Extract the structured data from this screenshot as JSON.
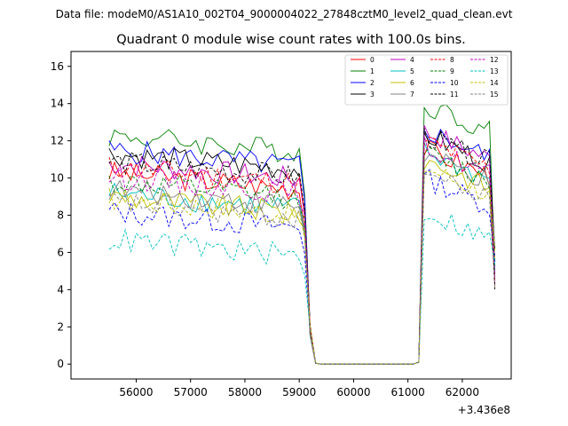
{
  "chart_data": {
    "type": "line",
    "suptitle": "Data file: modeM0/AS1A10_002T04_9000004022_27848cztM0_level2_quad_clean.evt",
    "title": "Quadrant 0 module wise count rates with 100.0s bins.",
    "xlabel": "",
    "ylabel": "",
    "x_offset_label": "+3.436e8",
    "x_offset": 343600000,
    "xlim": [
      54800,
      62900
    ],
    "ylim": [
      -0.8,
      16.8
    ],
    "xticks": [
      56000,
      57000,
      58000,
      59000,
      60000,
      61000,
      62000
    ],
    "xtick_labels": [
      "56000",
      "57000",
      "58000",
      "59000",
      "60000",
      "61000",
      "62000"
    ],
    "yticks": [
      0,
      2,
      4,
      6,
      8,
      10,
      12,
      14,
      16
    ],
    "ytick_labels": [
      "0",
      "2",
      "4",
      "6",
      "8",
      "10",
      "12",
      "14",
      "16"
    ],
    "grid": false,
    "legend_position": "top-right",
    "segments": [
      {
        "x_start": 55500,
        "x_end": 59100,
        "step": 100
      },
      {
        "x_start": 59100,
        "x_end": 61200,
        "step": 100,
        "note": "counts drop to ~0 (SAA gap)"
      },
      {
        "x_start": 61200,
        "x_end": 62600,
        "step": 100
      }
    ],
    "series": [
      {
        "name": "0",
        "color": "#ff0000",
        "dash": "solid",
        "level1": 10.3,
        "level2": 11.6
      },
      {
        "name": "1",
        "color": "#008000",
        "dash": "solid",
        "level1": 12.3,
        "level2": 14.0
      },
      {
        "name": "2",
        "color": "#0000ff",
        "dash": "solid",
        "level1": 11.5,
        "level2": 12.6
      },
      {
        "name": "3",
        "color": "#000000",
        "dash": "solid",
        "level1": 11.3,
        "level2": 12.3
      },
      {
        "name": "4",
        "color": "#bf00bf",
        "dash": "solid",
        "level1": 10.8,
        "level2": 12.5
      },
      {
        "name": "5",
        "color": "#00bfbf",
        "dash": "solid",
        "level1": 9.2,
        "level2": 11.4
      },
      {
        "name": "6",
        "color": "#bfbf00",
        "dash": "solid",
        "level1": 9.0,
        "level2": 11.0
      },
      {
        "name": "7",
        "color": "#808080",
        "dash": "solid",
        "level1": 9.4,
        "level2": 11.2
      },
      {
        "name": "8",
        "color": "#ff0000",
        "dash": "dashed",
        "level1": 10.6,
        "level2": 12.0
      },
      {
        "name": "9",
        "color": "#008000",
        "dash": "dashed",
        "level1": 9.8,
        "level2": 11.3
      },
      {
        "name": "10",
        "color": "#0000ff",
        "dash": "dashed",
        "level1": 8.2,
        "level2": 10.0
      },
      {
        "name": "11",
        "color": "#000000",
        "dash": "dashed",
        "level1": 10.9,
        "level2": 12.3
      },
      {
        "name": "12",
        "color": "#bf00bf",
        "dash": "dashed",
        "level1": 10.1,
        "level2": 11.7
      },
      {
        "name": "13",
        "color": "#00bfbf",
        "dash": "dashed",
        "level1": 6.7,
        "level2": 8.2
      },
      {
        "name": "14",
        "color": "#bfbf00",
        "dash": "dashed",
        "level1": 8.9,
        "level2": 10.6
      },
      {
        "name": "15",
        "color": "#808080",
        "dash": "dashed",
        "level1": 8.7,
        "level2": 10.3
      }
    ]
  }
}
